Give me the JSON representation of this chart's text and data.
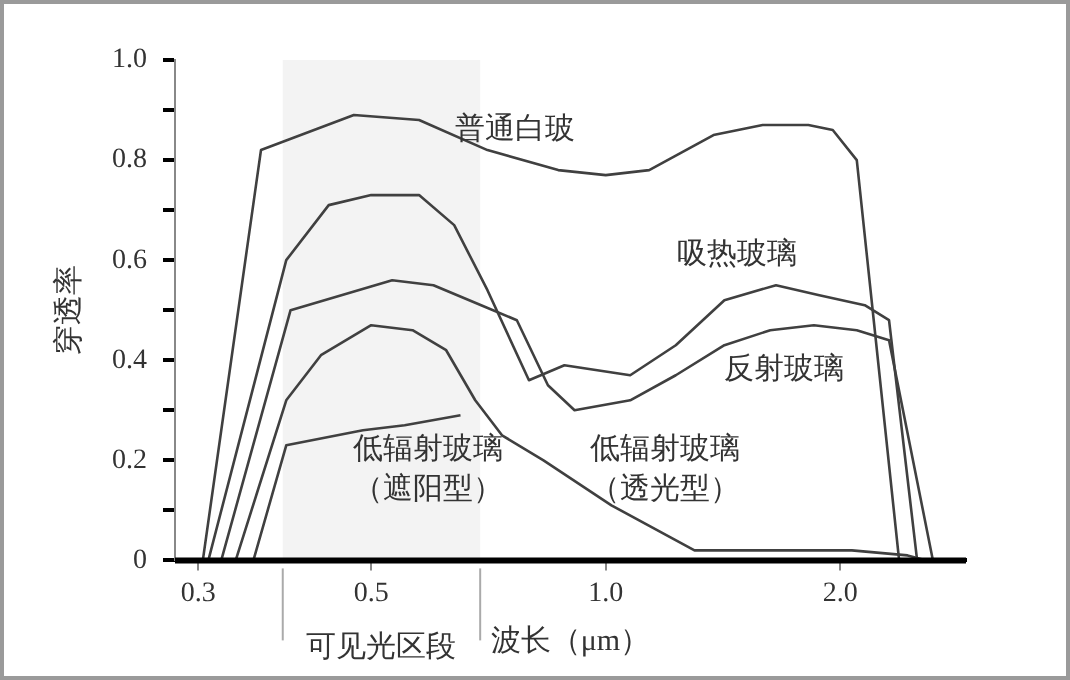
{
  "chart_data": {
    "type": "line",
    "xlabel": "波长（μm）",
    "ylabel": "穿透率",
    "log": "x",
    "xlim": [
      0.28,
      2.9
    ],
    "ylim": [
      0,
      1
    ],
    "xticks": [
      0.3,
      0.5,
      {
        "value": 1,
        "label": "1.0"
      },
      {
        "value": 2,
        "label": "2.0"
      }
    ],
    "yticks": [
      0,
      {
        "value": 0.1,
        "label": null
      },
      0.2,
      {
        "value": 0.3,
        "label": null
      },
      0.4,
      {
        "value": 0.5,
        "label": null
      },
      0.6,
      {
        "value": 0.7,
        "label": null
      },
      0.8,
      {
        "value": 0.9,
        "label": null
      },
      {
        "value": 1,
        "label": "1.0"
      }
    ],
    "grid": false,
    "legend": false,
    "marker": "none",
    "line_style": "solid",
    "bands": [
      {
        "axis": "x",
        "from": 0.385,
        "to": 0.69,
        "label": "可见光区段",
        "color": "#f3f3f3"
      }
    ],
    "series": [
      {
        "name": "普通白玻",
        "color": "#404040",
        "x": [
          0.304,
          0.361,
          0.475,
          0.576,
          0.705,
          0.869,
          1.0,
          1.137,
          1.375,
          1.59,
          1.82,
          1.956,
          2.1,
          2.38
        ],
        "values": [
          0,
          0.82,
          0.89,
          0.88,
          0.82,
          0.78,
          0.77,
          0.78,
          0.85,
          0.87,
          0.87,
          0.86,
          0.8,
          0
        ]
      },
      {
        "name": "吸热玻璃",
        "color": "#404040",
        "x": [
          0.309,
          0.389,
          0.441,
          0.5,
          0.576,
          0.639,
          0.705,
          0.797,
          0.885,
          1.075,
          1.23,
          1.42,
          1.654,
          1.88,
          2.15,
          2.31,
          2.51
        ],
        "values": [
          0,
          0.6,
          0.71,
          0.73,
          0.73,
          0.67,
          0.54,
          0.36,
          0.39,
          0.37,
          0.43,
          0.52,
          0.55,
          0.53,
          0.51,
          0.48,
          0
        ]
      },
      {
        "name": "反射玻璃",
        "color": "#404040",
        "x": [
          0.321,
          0.394,
          0.532,
          0.601,
          0.692,
          0.769,
          0.843,
          0.912,
          1.075,
          1.23,
          1.42,
          1.626,
          1.85,
          2.1,
          2.31,
          2.63
        ],
        "values": [
          0,
          0.5,
          0.56,
          0.55,
          0.51,
          0.48,
          0.35,
          0.3,
          0.32,
          0.37,
          0.43,
          0.46,
          0.47,
          0.46,
          0.44,
          0
        ]
      },
      {
        "name": "低辐射玻璃（遮阳型）",
        "color": "#404040",
        "x": [
          0.353,
          0.389,
          0.488,
          0.552,
          0.651
        ],
        "values": [
          0,
          0.23,
          0.26,
          0.27,
          0.29
        ]
      },
      {
        "name": "低辐射玻璃（透光型）",
        "color": "#404040",
        "x": [
          0.335,
          0.389,
          0.431,
          0.5,
          0.565,
          0.624,
          0.68,
          0.736,
          0.832,
          1.017,
          1.3,
          1.654,
          2.07,
          2.44,
          2.58
        ],
        "values": [
          0,
          0.32,
          0.41,
          0.47,
          0.46,
          0.42,
          0.32,
          0.25,
          0.2,
          0.11,
          0.02,
          0.02,
          0.02,
          0.01,
          0
        ]
      }
    ]
  }
}
